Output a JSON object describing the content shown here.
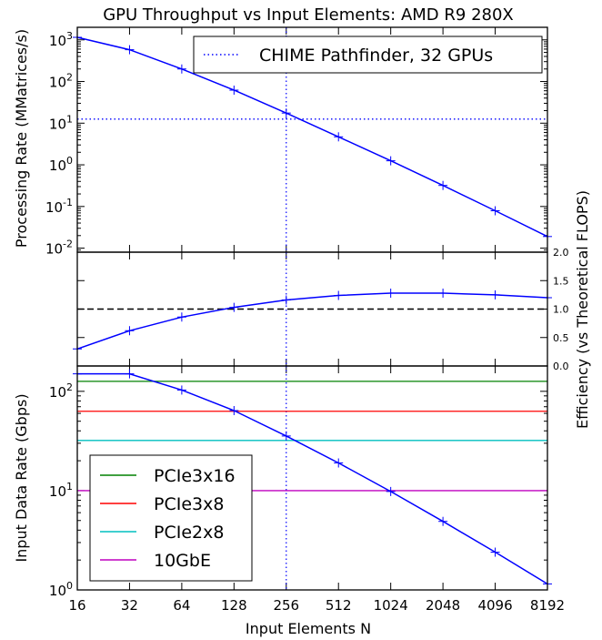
{
  "chart_data": {
    "type": "line",
    "title": "GPU Throughput vs Input Elements: AMD R9 280X",
    "xlabel": "Input Elements N",
    "x": [
      16,
      32,
      64,
      128,
      256,
      512,
      1024,
      2048,
      4096,
      8192
    ],
    "x_tick_labels": [
      "16",
      "32",
      "64",
      "128",
      "256",
      "512",
      "1024",
      "2048",
      "4096",
      "8192"
    ],
    "x_scale": "log2",
    "marker_x": 256,
    "panels": [
      {
        "id": "processing-rate",
        "ylabel": "Processing Rate (MMatrices/s)",
        "y_scale": "log10",
        "ylim": [
          0.008,
          2000
        ],
        "y_ticks": [
          {
            "mant": "10",
            "exp": "3",
            "value": 1000
          },
          {
            "mant": "10",
            "exp": "2",
            "value": 100
          },
          {
            "mant": "10",
            "exp": "1",
            "value": 10
          },
          {
            "mant": "10",
            "exp": "0",
            "value": 1
          },
          {
            "mant": "10",
            "exp": "-1",
            "value": 0.1
          },
          {
            "mant": "10",
            "exp": "-2",
            "value": 0.01
          }
        ],
        "series": [
          {
            "values": [
              1150,
              580,
              200,
              62,
              17.5,
              4.7,
              1.25,
              0.32,
              0.079,
              0.019
            ],
            "color": "#0000ff"
          }
        ],
        "hline": {
          "value": 12.5,
          "color": "#0000ff",
          "style": "dotted"
        },
        "legend": {
          "label": "CHIME Pathfinder, 32 GPUs",
          "placement": "top-right"
        }
      },
      {
        "id": "efficiency",
        "ylabel": "Efficiency (vs Theoretical FLOPS)",
        "y_side": "right",
        "ylim": [
          0.0,
          2.0
        ],
        "y_tick_labels": [
          "0.0",
          "0.5",
          "1.0",
          "1.5",
          "2.0"
        ],
        "series": [
          {
            "values": [
              0.3,
              0.62,
              0.86,
              1.03,
              1.16,
              1.24,
              1.28,
              1.28,
              1.25,
              1.2
            ],
            "color": "#0000ff"
          }
        ],
        "hline": {
          "value": 1.0,
          "color": "#000000",
          "style": "dashed"
        }
      },
      {
        "id": "input-data-rate",
        "ylabel": "Input Data Rate (Gbps)",
        "y_scale": "log10",
        "ylim": [
          1,
          180
        ],
        "y_ticks": [
          {
            "mant": "10",
            "exp": "2",
            "value": 100
          },
          {
            "mant": "10",
            "exp": "1",
            "value": 10
          },
          {
            "mant": "10",
            "exp": "0",
            "value": 1
          }
        ],
        "series": [
          {
            "values": [
              150,
              150,
              103,
              64,
              35.5,
              19,
              9.8,
              4.9,
              2.4,
              1.15
            ],
            "color": "#0000ff"
          }
        ],
        "hlines": [
          {
            "label": "PCIe3x16",
            "value": 126,
            "color": "#008000"
          },
          {
            "label": "PCIe3x8",
            "value": 63,
            "color": "#ff0000"
          },
          {
            "label": "PCIe2x8",
            "value": 32,
            "color": "#00bfbf"
          },
          {
            "label": "10GbE",
            "value": 10,
            "color": "#bf00bf"
          }
        ],
        "legend": {
          "placement": "lower-left"
        }
      }
    ]
  }
}
